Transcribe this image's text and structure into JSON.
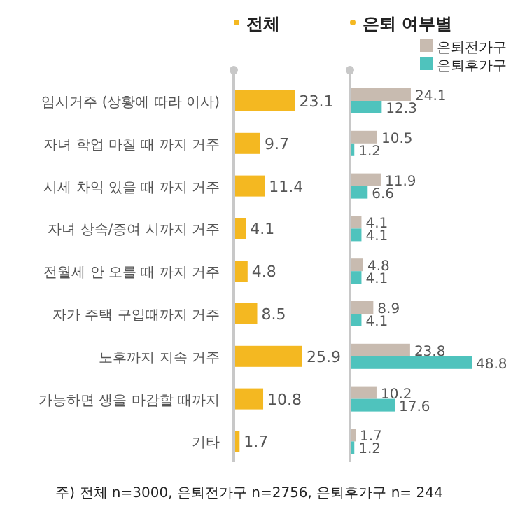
{
  "chart_data": [
    {
      "type": "bar",
      "orientation": "horizontal",
      "title": "전체",
      "categories": [
        "임시거주 (상황에 따라 이사)",
        "자녀 학업 마칠 때 까지 거주",
        "시세 차익 있을 때 까지 거주",
        "자녀 상속/증여 시까지 거주",
        "전월세 안 오를 때 까지 거주",
        "자가 주택 구입때까지 거주",
        "노후까지 지속 거주",
        "가능하면 생을 마감할 때까지",
        "기타"
      ],
      "values": [
        23.1,
        9.7,
        11.4,
        4.1,
        4.8,
        8.5,
        25.9,
        10.8,
        1.7
      ],
      "color": "#f4b821",
      "data_labels": true,
      "legend": false,
      "annotations": [
        "주) 전체 n=3000, 은퇴전가구 n=2756, 은퇴후가구 n= 244"
      ]
    },
    {
      "type": "bar",
      "orientation": "horizontal",
      "title": "은퇴 여부별",
      "categories": [
        null,
        null,
        null,
        null,
        null,
        null,
        null,
        null,
        null
      ],
      "series": [
        {
          "name": "은퇴전가구",
          "color": "#c8bbb0",
          "values": [
            24.1,
            10.5,
            11.9,
            4.1,
            4.8,
            8.9,
            23.8,
            10.2,
            1.7
          ]
        },
        {
          "name": "은퇴후가구",
          "color": "#4fc3bd",
          "values": [
            12.3,
            1.2,
            6.6,
            4.1,
            4.1,
            4.1,
            48.8,
            17.6,
            1.2
          ]
        }
      ],
      "data_labels": true,
      "legend": "top right"
    }
  ]
}
